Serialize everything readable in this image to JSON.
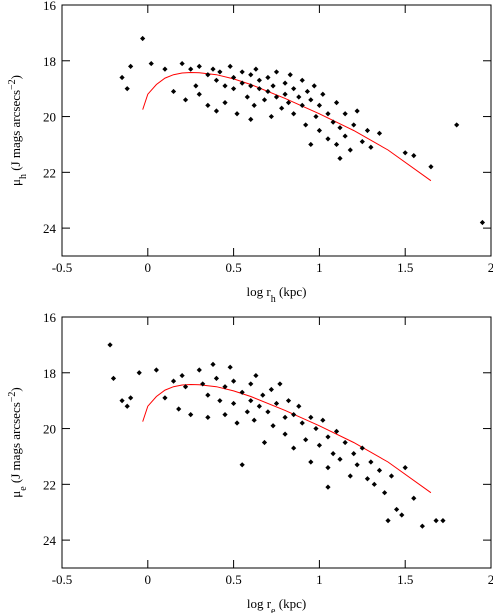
{
  "chart_data": [
    {
      "type": "scatter",
      "xlabel": [
        {
          "text": "log r"
        },
        {
          "text": "h",
          "shift": "sub"
        },
        {
          "text": " (kpc)"
        }
      ],
      "ylabel": [
        {
          "text": "μ"
        },
        {
          "text": "h",
          "shift": "sub"
        },
        {
          "text": " (J mags arcsecs"
        },
        {
          "text": "−2",
          "shift": "super"
        },
        {
          "text": ")"
        }
      ],
      "xlim": [
        -0.5,
        2
      ],
      "xticks": [
        -0.5,
        0,
        0.5,
        1,
        1.5,
        2
      ],
      "ylim": [
        16,
        25
      ],
      "y_inverted": true,
      "yticks": [
        16,
        18,
        20,
        22,
        24
      ],
      "points": {
        "color": "#000000",
        "x": [
          -0.15,
          -0.12,
          -0.1,
          -0.03,
          0.02,
          0.1,
          0.15,
          0.2,
          0.22,
          0.25,
          0.3,
          0.3,
          0.35,
          0.38,
          0.4,
          0.4,
          0.42,
          0.45,
          0.45,
          0.48,
          0.5,
          0.5,
          0.52,
          0.55,
          0.55,
          0.58,
          0.6,
          0.6,
          0.62,
          0.63,
          0.65,
          0.65,
          0.68,
          0.7,
          0.7,
          0.72,
          0.73,
          0.75,
          0.75,
          0.78,
          0.8,
          0.8,
          0.82,
          0.83,
          0.85,
          0.85,
          0.88,
          0.9,
          0.9,
          0.92,
          0.93,
          0.95,
          0.97,
          0.98,
          1.0,
          1.0,
          1.02,
          1.05,
          1.05,
          1.08,
          1.1,
          1.1,
          1.12,
          1.15,
          1.15,
          1.18,
          1.2,
          1.22,
          1.25,
          1.28,
          1.3,
          1.35,
          1.5,
          1.55,
          1.65,
          1.8,
          1.95,
          0.35,
          0.28,
          0.95,
          1.12,
          0.6
        ],
        "y": [
          18.6,
          19.0,
          18.2,
          17.2,
          18.1,
          18.3,
          19.1,
          18.1,
          19.4,
          18.3,
          18.2,
          19.2,
          18.5,
          18.3,
          18.7,
          19.8,
          18.4,
          18.9,
          19.5,
          18.2,
          18.6,
          19.0,
          19.9,
          18.4,
          18.8,
          19.3,
          18.5,
          18.9,
          19.6,
          18.3,
          19.0,
          18.7,
          19.4,
          18.6,
          19.1,
          20.0,
          18.9,
          19.3,
          18.4,
          19.7,
          18.8,
          19.2,
          19.5,
          18.5,
          19.0,
          19.9,
          19.3,
          18.7,
          19.6,
          20.3,
          19.1,
          19.4,
          18.9,
          20.0,
          19.6,
          20.5,
          19.2,
          19.9,
          20.8,
          20.2,
          19.5,
          21.0,
          20.4,
          19.9,
          20.7,
          21.2,
          20.3,
          19.8,
          20.9,
          20.5,
          21.1,
          20.6,
          21.3,
          21.4,
          21.8,
          20.3,
          23.8,
          19.6,
          18.9,
          21.0,
          21.5,
          20.1
        ]
      },
      "fit": {
        "color": "#ff0000",
        "x": [
          -0.03,
          0,
          0.05,
          0.1,
          0.15,
          0.2,
          0.25,
          0.3,
          0.4,
          0.5,
          0.6,
          0.8,
          1.0,
          1.2,
          1.4,
          1.65
        ],
        "y": [
          19.75,
          19.2,
          18.85,
          18.62,
          18.5,
          18.44,
          18.42,
          18.43,
          18.5,
          18.65,
          18.85,
          19.35,
          19.9,
          20.5,
          21.2,
          22.3
        ]
      }
    },
    {
      "type": "scatter",
      "xlabel": [
        {
          "text": "log r"
        },
        {
          "text": "e",
          "shift": "sub"
        },
        {
          "text": " (kpc)"
        }
      ],
      "ylabel": [
        {
          "text": "μ"
        },
        {
          "text": "e",
          "shift": "sub"
        },
        {
          "text": " (J mags arcsecs"
        },
        {
          "text": "−2",
          "shift": "super"
        },
        {
          "text": ")"
        }
      ],
      "xlim": [
        -0.5,
        2
      ],
      "xticks": [
        -0.5,
        0,
        0.5,
        1,
        1.5,
        2
      ],
      "ylim": [
        16,
        25
      ],
      "y_inverted": true,
      "yticks": [
        16,
        18,
        20,
        22,
        24
      ],
      "points": {
        "color": "#000000",
        "x": [
          -0.22,
          -0.2,
          -0.15,
          -0.12,
          -0.1,
          -0.05,
          0.1,
          0.15,
          0.18,
          0.2,
          0.22,
          0.25,
          0.3,
          0.32,
          0.35,
          0.35,
          0.38,
          0.4,
          0.42,
          0.45,
          0.45,
          0.48,
          0.5,
          0.5,
          0.52,
          0.55,
          0.55,
          0.58,
          0.6,
          0.6,
          0.62,
          0.63,
          0.65,
          0.67,
          0.68,
          0.7,
          0.72,
          0.73,
          0.75,
          0.77,
          0.8,
          0.8,
          0.82,
          0.85,
          0.85,
          0.88,
          0.9,
          0.92,
          0.95,
          0.95,
          0.98,
          1.0,
          1.02,
          1.05,
          1.05,
          1.08,
          1.1,
          1.12,
          1.15,
          1.18,
          1.2,
          1.22,
          1.25,
          1.28,
          1.3,
          1.32,
          1.35,
          1.38,
          1.4,
          1.42,
          1.45,
          1.48,
          1.5,
          1.55,
          1.6,
          1.68,
          1.72,
          0.05,
          1.05
        ],
        "y": [
          17.0,
          18.2,
          19.0,
          19.2,
          18.9,
          18.0,
          18.9,
          18.3,
          19.3,
          18.1,
          18.5,
          19.5,
          17.9,
          18.4,
          18.8,
          19.6,
          17.7,
          18.2,
          19.0,
          18.5,
          19.5,
          17.8,
          18.3,
          19.1,
          19.8,
          18.7,
          21.3,
          19.4,
          18.4,
          19.0,
          19.7,
          18.1,
          19.2,
          18.8,
          20.5,
          19.4,
          18.6,
          19.9,
          19.1,
          18.4,
          19.6,
          20.2,
          19.0,
          19.5,
          20.7,
          19.2,
          19.8,
          20.4,
          19.6,
          21.2,
          20.0,
          20.6,
          19.7,
          20.3,
          21.4,
          20.9,
          20.1,
          21.1,
          20.5,
          21.7,
          20.9,
          21.3,
          20.7,
          21.8,
          21.2,
          22.0,
          21.5,
          22.3,
          23.3,
          21.7,
          22.9,
          23.1,
          21.4,
          22.5,
          23.5,
          23.3,
          23.3,
          17.9,
          22.1
        ]
      },
      "fit": {
        "color": "#ff0000",
        "x": [
          -0.03,
          0,
          0.05,
          0.1,
          0.15,
          0.2,
          0.25,
          0.3,
          0.4,
          0.5,
          0.6,
          0.8,
          1.0,
          1.2,
          1.4,
          1.65
        ],
        "y": [
          19.75,
          19.2,
          18.85,
          18.62,
          18.5,
          18.44,
          18.42,
          18.43,
          18.5,
          18.65,
          18.85,
          19.35,
          19.9,
          20.5,
          21.2,
          22.3
        ]
      }
    }
  ]
}
